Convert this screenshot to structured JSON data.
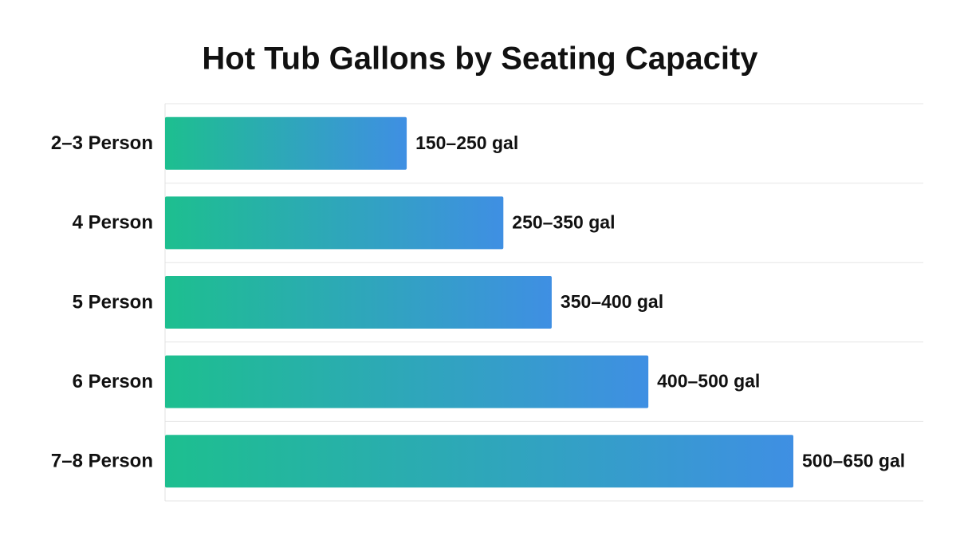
{
  "chart_data": {
    "type": "bar",
    "orientation": "horizontal",
    "title": "Hot Tub Gallons by Seating Capacity",
    "categories": [
      "2–3 Person",
      "4 Person",
      "5 Person",
      "6 Person",
      "7–8 Person"
    ],
    "values": [
      250,
      350,
      400,
      500,
      650
    ],
    "value_labels": [
      "150–250 gal",
      "250–350 gal",
      "350–400 gal",
      "400–500 gal",
      "500–650 gal"
    ],
    "gradient": [
      "#1dbf8f",
      "#3f8fe3"
    ],
    "grid": true
  }
}
